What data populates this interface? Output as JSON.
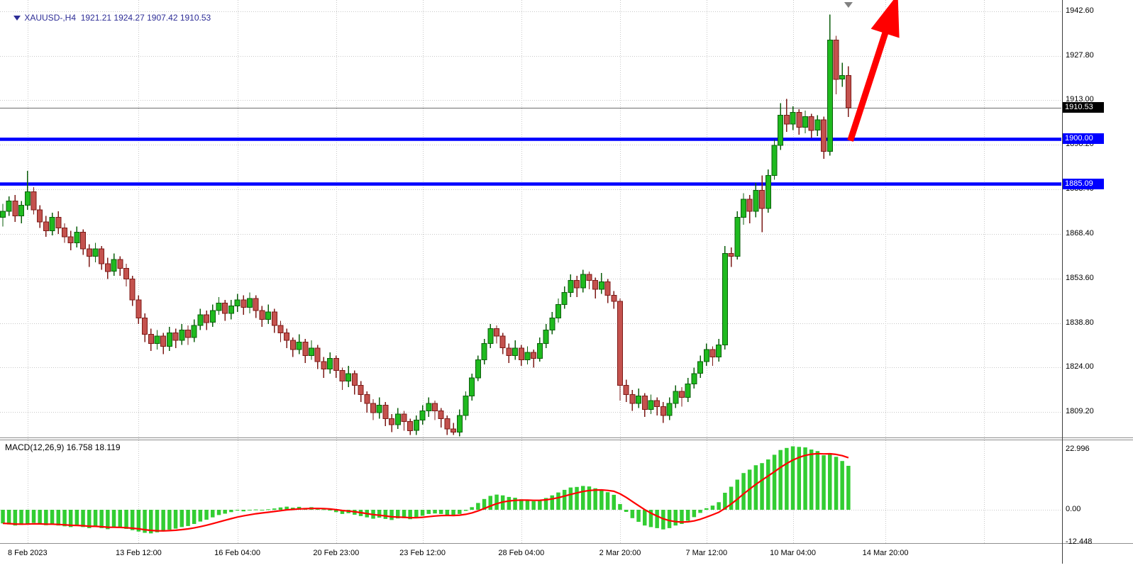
{
  "header": {
    "title": "XAUUSD-,H4  1921.21 1924.27 1907.42 1910.53"
  },
  "macd_panel": {
    "label": "MACD(12,26,9) 16.758 18.119"
  },
  "theme": {
    "background": "#ffffff",
    "grid": "#c8c8c8",
    "title_color": "#2d2d96",
    "axis_text": "#000000",
    "hline_color": "#0000ff",
    "arrow_color": "#ff0000"
  },
  "price_axis": {
    "labels": [
      {
        "text": "1942.60",
        "value": 1942.6
      },
      {
        "text": "1927.80",
        "value": 1927.8
      },
      {
        "text": "1913.00",
        "value": 1913.0
      },
      {
        "text": "1898.20",
        "value": 1898.2
      },
      {
        "text": "1883.40",
        "value": 1883.4
      },
      {
        "text": "1868.40",
        "value": 1868.4
      },
      {
        "text": "1853.60",
        "value": 1853.6
      },
      {
        "text": "1838.80",
        "value": 1838.8
      },
      {
        "text": "1824.00",
        "value": 1824.0
      },
      {
        "text": "1809.20",
        "value": 1809.2
      }
    ],
    "badges": [
      {
        "text": "1910.53",
        "value": 1910.53,
        "bg": "#000000"
      },
      {
        "text": "1900.00",
        "value": 1900.0,
        "bg": "#0000ff"
      },
      {
        "text": "1885.09",
        "value": 1885.09,
        "bg": "#0000ff"
      }
    ]
  },
  "macd_axis": {
    "labels": [
      {
        "text": "22.996",
        "value": 22.996
      },
      {
        "text": "0.00",
        "value": 0
      },
      {
        "text": "-12.448",
        "value": -12.448
      }
    ]
  },
  "time_axis": {
    "ticks": [
      {
        "text": "8 Feb 2023",
        "index": 4
      },
      {
        "text": "13 Feb 12:00",
        "index": 22
      },
      {
        "text": "16 Feb 04:00",
        "index": 38
      },
      {
        "text": "20 Feb 23:00",
        "index": 54
      },
      {
        "text": "23 Feb 12:00",
        "index": 68
      },
      {
        "text": "28 Feb 04:00",
        "index": 84
      },
      {
        "text": "2 Mar 20:00",
        "index": 100
      },
      {
        "text": "7 Mar 12:00",
        "index": 114
      },
      {
        "text": "10 Mar 04:00",
        "index": 128
      },
      {
        "text": "14 Mar 20:00",
        "index": 143
      }
    ],
    "extra_grid_indices": [
      159
    ]
  },
  "chart_data": [
    {
      "type": "candlestick",
      "title": "XAUUSD-,H4",
      "symbol": "XAUUSD-",
      "timeframe": "H4",
      "last_ohlc": {
        "open": 1921.21,
        "high": 1924.27,
        "low": 1907.42,
        "close": 1910.53
      },
      "ylim": [
        1800.7,
        1946.4
      ],
      "gridline_prices": [
        1942.6,
        1927.8,
        1913.0,
        1898.2,
        1883.4,
        1868.4,
        1853.6,
        1838.8,
        1824.0,
        1809.2
      ],
      "current_price_line": 1910.53,
      "hlines": [
        {
          "price": 1900.0,
          "label": "1900.00",
          "color": "#0000ff"
        },
        {
          "price": 1885.09,
          "label": "1885.09",
          "color": "#0000ff"
        }
      ],
      "annotations": [
        {
          "type": "arrow",
          "color": "#ff0000",
          "from_index": 137.3,
          "from_price": 1899.5,
          "to_index": 145.0,
          "to_price": 1948.3
        },
        {
          "type": "shift_marker",
          "index": 137,
          "color": "#808080"
        }
      ],
      "colors": {
        "up": "#1fba1f",
        "up_border": "#0b5e0b",
        "down": "#c4524e",
        "down_border": "#7c1a17",
        "grid": "#c8c8c8"
      },
      "candles": [
        [
          1874.0,
          1878.5,
          1871.0,
          1876.0
        ],
        [
          1876.0,
          1881.0,
          1874.5,
          1879.5
        ],
        [
          1879.5,
          1881.5,
          1872.5,
          1874.5
        ],
        [
          1874.5,
          1879.5,
          1872.0,
          1878.0
        ],
        [
          1878.0,
          1889.5,
          1876.5,
          1882.5
        ],
        [
          1882.5,
          1884.0,
          1875.0,
          1876.5
        ],
        [
          1876.5,
          1878.0,
          1870.5,
          1872.5
        ],
        [
          1872.5,
          1874.5,
          1867.5,
          1869.5
        ],
        [
          1869.5,
          1875.5,
          1868.0,
          1874.0
        ],
        [
          1874.0,
          1876.0,
          1868.5,
          1870.5
        ],
        [
          1870.5,
          1872.0,
          1865.5,
          1867.5
        ],
        [
          1867.5,
          1869.5,
          1863.0,
          1865.5
        ],
        [
          1865.5,
          1871.0,
          1864.0,
          1869.0
        ],
        [
          1869.0,
          1870.0,
          1861.5,
          1863.5
        ],
        [
          1863.5,
          1865.0,
          1857.5,
          1861.0
        ],
        [
          1861.0,
          1865.5,
          1859.0,
          1863.5
        ],
        [
          1863.5,
          1864.5,
          1856.5,
          1858.5
        ],
        [
          1858.5,
          1860.5,
          1853.5,
          1856.0
        ],
        [
          1856.0,
          1862.0,
          1854.5,
          1860.0
        ],
        [
          1860.0,
          1861.0,
          1854.5,
          1857.0
        ],
        [
          1857.0,
          1858.5,
          1851.0,
          1853.5
        ],
        [
          1853.5,
          1854.5,
          1844.5,
          1846.5
        ],
        [
          1846.5,
          1848.0,
          1838.5,
          1840.5
        ],
        [
          1840.5,
          1842.0,
          1832.5,
          1835.0
        ],
        [
          1835.0,
          1837.0,
          1829.5,
          1832.0
        ],
        [
          1832.0,
          1836.5,
          1830.0,
          1834.5
        ],
        [
          1834.5,
          1835.5,
          1828.5,
          1831.0
        ],
        [
          1831.0,
          1837.5,
          1829.5,
          1835.5
        ],
        [
          1835.5,
          1837.0,
          1830.5,
          1833.0
        ],
        [
          1833.0,
          1838.5,
          1831.5,
          1836.5
        ],
        [
          1836.5,
          1838.0,
          1831.5,
          1834.0
        ],
        [
          1834.0,
          1840.0,
          1832.5,
          1838.0
        ],
        [
          1838.0,
          1843.5,
          1836.5,
          1841.5
        ],
        [
          1841.5,
          1843.0,
          1836.5,
          1839.0
        ],
        [
          1839.0,
          1845.0,
          1837.5,
          1843.0
        ],
        [
          1843.0,
          1847.5,
          1841.5,
          1845.5
        ],
        [
          1845.5,
          1846.5,
          1839.5,
          1842.0
        ],
        [
          1842.0,
          1846.5,
          1840.0,
          1844.5
        ],
        [
          1844.5,
          1848.5,
          1842.5,
          1846.5
        ],
        [
          1846.5,
          1848.0,
          1841.5,
          1844.0
        ],
        [
          1844.0,
          1849.0,
          1842.0,
          1847.0
        ],
        [
          1847.0,
          1848.0,
          1840.5,
          1843.0
        ],
        [
          1843.0,
          1844.5,
          1837.5,
          1840.0
        ],
        [
          1840.0,
          1845.0,
          1838.5,
          1842.5
        ],
        [
          1842.5,
          1843.5,
          1835.5,
          1838.0
        ],
        [
          1838.0,
          1839.5,
          1832.5,
          1835.5
        ],
        [
          1835.5,
          1837.0,
          1830.5,
          1833.0
        ],
        [
          1833.0,
          1834.0,
          1827.5,
          1830.0
        ],
        [
          1830.0,
          1835.0,
          1828.5,
          1832.5
        ],
        [
          1832.5,
          1833.5,
          1825.5,
          1828.0
        ],
        [
          1828.0,
          1833.0,
          1826.5,
          1830.5
        ],
        [
          1830.5,
          1831.5,
          1823.5,
          1826.0
        ],
        [
          1826.0,
          1827.5,
          1820.5,
          1823.5
        ],
        [
          1823.5,
          1829.0,
          1822.0,
          1827.0
        ],
        [
          1827.0,
          1828.0,
          1820.5,
          1823.0
        ],
        [
          1823.0,
          1824.0,
          1816.5,
          1819.5
        ],
        [
          1819.5,
          1824.5,
          1817.5,
          1822.0
        ],
        [
          1822.0,
          1823.0,
          1815.0,
          1818.0
        ],
        [
          1818.0,
          1819.5,
          1812.5,
          1815.0
        ],
        [
          1815.0,
          1816.0,
          1809.0,
          1812.0
        ],
        [
          1812.0,
          1813.5,
          1806.5,
          1809.0
        ],
        [
          1809.0,
          1814.0,
          1807.0,
          1811.5
        ],
        [
          1811.5,
          1812.5,
          1804.5,
          1807.0
        ],
        [
          1807.0,
          1808.5,
          1802.5,
          1805.0
        ],
        [
          1805.0,
          1810.5,
          1803.5,
          1808.5
        ],
        [
          1808.5,
          1809.5,
          1803.0,
          1806.0
        ],
        [
          1806.0,
          1807.0,
          1801.5,
          1803.0
        ],
        [
          1803.0,
          1808.0,
          1801.5,
          1806.5
        ],
        [
          1806.5,
          1811.5,
          1805.0,
          1809.5
        ],
        [
          1809.5,
          1814.0,
          1807.5,
          1812.0
        ],
        [
          1812.0,
          1813.0,
          1806.5,
          1809.5
        ],
        [
          1809.5,
          1810.5,
          1804.0,
          1807.0
        ],
        [
          1807.0,
          1808.0,
          1801.5,
          1803.5
        ],
        [
          1803.5,
          1805.5,
          1801.5,
          1802.5
        ],
        [
          1802.5,
          1810.0,
          1801.0,
          1808.0
        ],
        [
          1808.0,
          1816.0,
          1806.5,
          1814.5
        ],
        [
          1814.5,
          1822.0,
          1813.0,
          1820.5
        ],
        [
          1820.5,
          1828.0,
          1819.5,
          1826.5
        ],
        [
          1826.5,
          1833.5,
          1825.0,
          1832.0
        ],
        [
          1832.0,
          1838.5,
          1830.5,
          1837.0
        ],
        [
          1837.0,
          1838.0,
          1832.0,
          1834.5
        ],
        [
          1834.5,
          1835.5,
          1828.5,
          1830.5
        ],
        [
          1830.5,
          1832.0,
          1825.5,
          1828.0
        ],
        [
          1828.0,
          1833.0,
          1826.5,
          1830.5
        ],
        [
          1830.5,
          1831.5,
          1824.5,
          1826.5
        ],
        [
          1826.5,
          1831.0,
          1825.0,
          1829.0
        ],
        [
          1829.0,
          1830.0,
          1824.0,
          1827.0
        ],
        [
          1827.0,
          1834.0,
          1826.0,
          1832.0
        ],
        [
          1832.0,
          1838.5,
          1830.5,
          1836.5
        ],
        [
          1836.5,
          1842.5,
          1835.0,
          1840.5
        ],
        [
          1840.5,
          1847.0,
          1839.0,
          1845.0
        ],
        [
          1845.0,
          1851.0,
          1843.5,
          1849.0
        ],
        [
          1849.0,
          1855.0,
          1847.5,
          1853.0
        ],
        [
          1853.0,
          1854.5,
          1847.5,
          1850.5
        ],
        [
          1850.5,
          1856.5,
          1849.0,
          1855.0
        ],
        [
          1855.0,
          1856.0,
          1850.0,
          1853.0
        ],
        [
          1853.0,
          1854.0,
          1847.0,
          1850.0
        ],
        [
          1850.0,
          1855.5,
          1848.5,
          1852.5
        ],
        [
          1852.5,
          1853.5,
          1845.5,
          1848.0
        ],
        [
          1848.0,
          1849.5,
          1843.5,
          1846.0
        ],
        [
          1846.0,
          1847.0,
          1813.0,
          1818.0
        ],
        [
          1818.0,
          1820.0,
          1812.5,
          1815.0
        ],
        [
          1815.0,
          1816.5,
          1809.5,
          1812.0
        ],
        [
          1812.0,
          1817.0,
          1810.5,
          1814.5
        ],
        [
          1814.5,
          1815.5,
          1807.5,
          1810.0
        ],
        [
          1810.0,
          1815.0,
          1808.5,
          1813.0
        ],
        [
          1813.0,
          1814.0,
          1808.0,
          1811.0
        ],
        [
          1811.0,
          1812.5,
          1805.5,
          1808.0
        ],
        [
          1808.0,
          1814.0,
          1806.5,
          1812.0
        ],
        [
          1812.0,
          1818.0,
          1810.5,
          1816.0
        ],
        [
          1816.0,
          1817.5,
          1811.0,
          1814.0
        ],
        [
          1814.0,
          1820.5,
          1812.5,
          1818.5
        ],
        [
          1818.5,
          1824.0,
          1817.0,
          1822.0
        ],
        [
          1822.0,
          1828.0,
          1820.5,
          1826.0
        ],
        [
          1826.0,
          1832.0,
          1824.5,
          1830.0
        ],
        [
          1830.0,
          1831.0,
          1824.5,
          1827.5
        ],
        [
          1827.5,
          1833.5,
          1826.0,
          1831.5
        ],
        [
          1831.5,
          1864.5,
          1830.0,
          1862.0
        ],
        [
          1862.0,
          1864.0,
          1857.5,
          1861.0
        ],
        [
          1861.0,
          1876.0,
          1860.0,
          1874.0
        ],
        [
          1874.0,
          1882.0,
          1871.5,
          1880.0
        ],
        [
          1880.0,
          1881.5,
          1872.0,
          1876.0
        ],
        [
          1876.0,
          1885.5,
          1874.0,
          1883.0
        ],
        [
          1883.0,
          1888.0,
          1869.0,
          1877.0
        ],
        [
          1877.0,
          1890.0,
          1875.5,
          1888.0
        ],
        [
          1888.0,
          1900.0,
          1886.5,
          1898.0
        ],
        [
          1898.0,
          1912.0,
          1896.5,
          1908.0
        ],
        [
          1908.0,
          1913.5,
          1902.5,
          1905.0
        ],
        [
          1905.0,
          1911.0,
          1903.0,
          1909.0
        ],
        [
          1909.0,
          1910.0,
          1901.5,
          1904.0
        ],
        [
          1904.0,
          1909.5,
          1902.0,
          1907.5
        ],
        [
          1907.5,
          1908.5,
          1900.5,
          1903.0
        ],
        [
          1903.0,
          1908.0,
          1901.0,
          1906.5
        ],
        [
          1906.5,
          1907.5,
          1893.5,
          1896.0
        ],
        [
          1896.0,
          1941.5,
          1894.5,
          1933.0
        ],
        [
          1933.0,
          1934.5,
          1915.0,
          1920.0
        ],
        [
          1920.0,
          1925.5,
          1917.5,
          1921.2
        ],
        [
          1921.2,
          1924.3,
          1907.4,
          1910.5
        ]
      ]
    },
    {
      "type": "bar",
      "name": "MACD(12,26,9)",
      "current": {
        "macd": 16.758,
        "signal": 18.119
      },
      "ylim": [
        -12.7,
        26.8
      ],
      "signal_period": 9,
      "colors": {
        "histogram": "#32cd32",
        "signal": "#ff0000"
      },
      "values": [
        -5.2,
        -5.6,
        -6.0,
        -5.8,
        -5.3,
        -5.0,
        -5.4,
        -5.9,
        -5.6,
        -6.0,
        -6.3,
        -6.6,
        -6.2,
        -6.6,
        -7.0,
        -6.6,
        -7.0,
        -7.4,
        -6.8,
        -6.9,
        -7.3,
        -7.8,
        -8.3,
        -8.8,
        -9.0,
        -8.6,
        -8.2,
        -7.6,
        -7.2,
        -6.6,
        -6.2,
        -5.4,
        -4.5,
        -3.8,
        -2.9,
        -2.0,
        -1.5,
        -0.9,
        -0.3,
        -0.6,
        -0.2,
        0.1,
        -0.1,
        0.2,
        0.5,
        0.9,
        1.2,
        0.8,
        1.1,
        0.7,
        1.0,
        0.5,
        0.2,
        -0.3,
        -0.9,
        -1.6,
        -1.3,
        -1.9,
        -2.4,
        -2.9,
        -3.4,
        -3.0,
        -3.5,
        -3.9,
        -3.3,
        -3.2,
        -3.6,
        -3.0,
        -2.3,
        -1.6,
        -1.4,
        -1.6,
        -2.0,
        -2.2,
        -1.6,
        -0.4,
        1.0,
        2.6,
        4.1,
        5.3,
        5.8,
        5.5,
        4.9,
        4.6,
        4.0,
        3.7,
        3.3,
        3.7,
        4.5,
        5.5,
        6.6,
        7.6,
        8.5,
        8.7,
        9.1,
        8.9,
        8.2,
        7.7,
        6.7,
        5.7,
        2.2,
        -0.8,
        -3.2,
        -4.6,
        -6.0,
        -6.6,
        -7.0,
        -7.5,
        -7.0,
        -6.0,
        -5.4,
        -4.2,
        -2.8,
        -1.2,
        0.6,
        1.6,
        2.9,
        6.5,
        8.8,
        11.5,
        14.0,
        15.3,
        17.0,
        17.8,
        19.2,
        21.0,
        22.8,
        23.6,
        24.2,
        24.0,
        23.8,
        23.0,
        22.4,
        20.8,
        21.6,
        20.2,
        18.6,
        16.758
      ]
    }
  ]
}
